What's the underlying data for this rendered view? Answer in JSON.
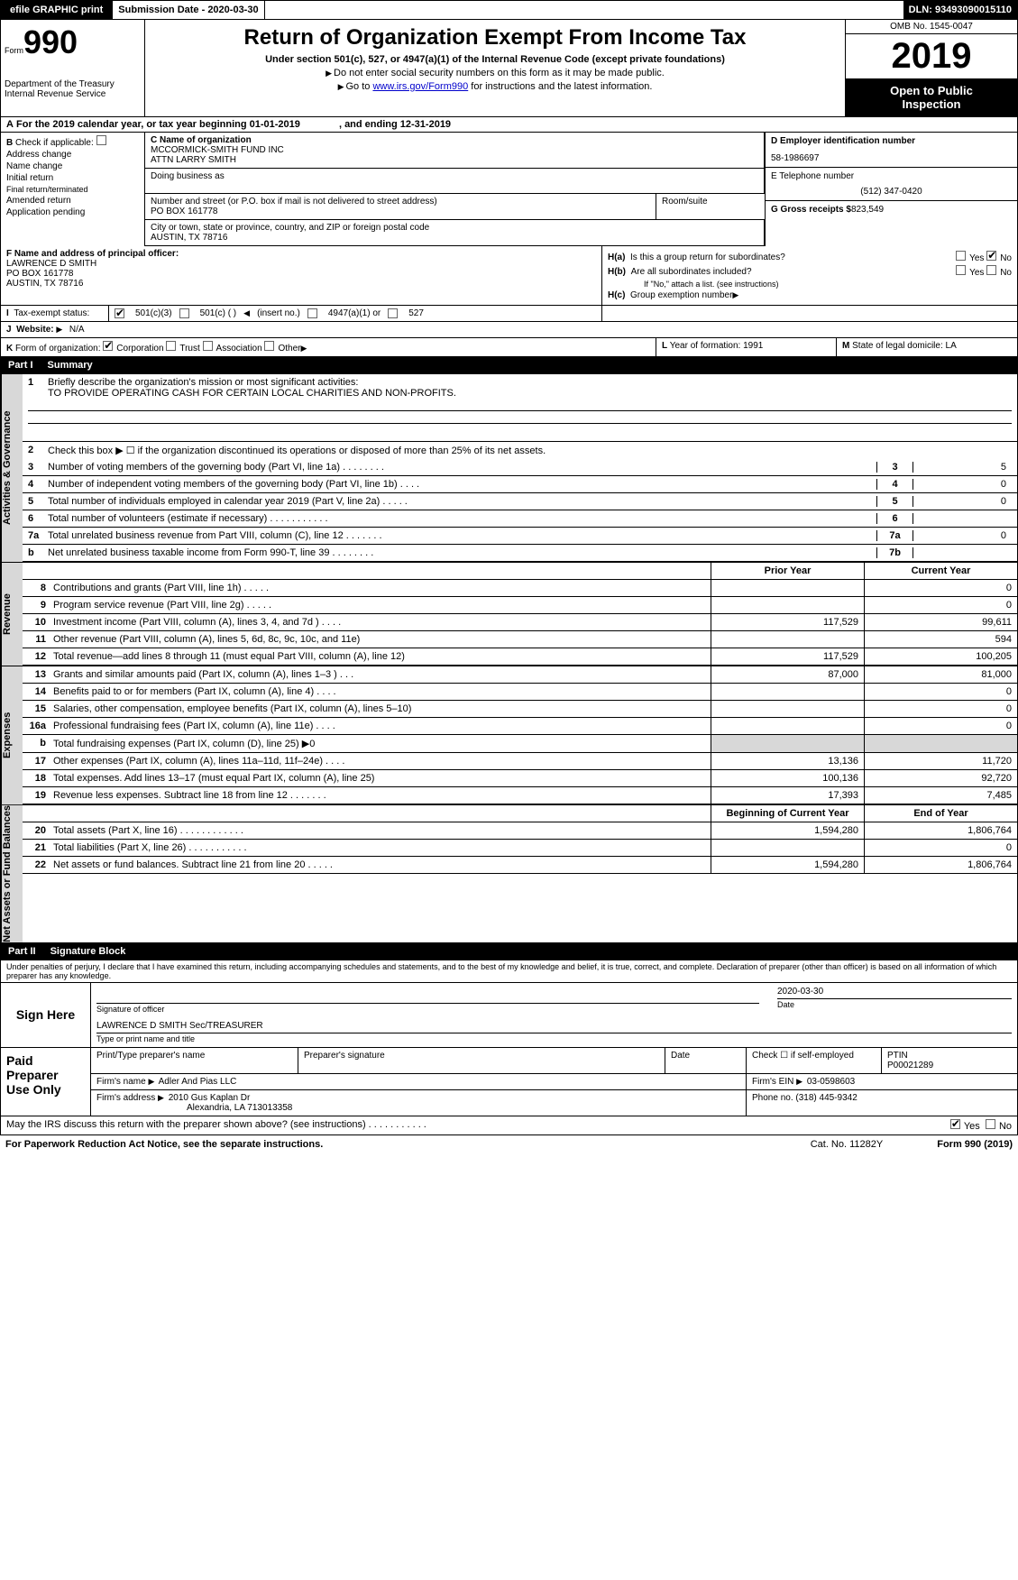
{
  "topbar": {
    "efile_label": "efile GRAPHIC print",
    "submission_label": "Submission Date - 2020-03-30",
    "dln_label": "DLN: 93493090015110"
  },
  "header": {
    "form_label": "Form",
    "form_number": "990",
    "dept": "Department of the Treasury\nInternal Revenue Service",
    "title": "Return of Organization Exempt From Income Tax",
    "subtitle": "Under section 501(c), 527, or 4947(a)(1) of the Internal Revenue Code (except private foundations)",
    "note1": "Do not enter social security numbers on this form as it may be made public.",
    "note2_pre": "Go to ",
    "note2_link": "www.irs.gov/Form990",
    "note2_post": " for instructions and the latest information.",
    "omb": "OMB No. 1545-0047",
    "year": "2019",
    "open": "Open to Public\nInspection"
  },
  "rowA": {
    "label": "A",
    "text": "For the 2019 calendar year, or tax year beginning 01-01-2019",
    "ending": ", and ending 12-31-2019"
  },
  "B": {
    "label": "B",
    "check_label": "Check if applicable:",
    "items": [
      "Address change",
      "Name change",
      "Initial return",
      "Final return/terminated",
      "Amended return",
      "Application pending"
    ]
  },
  "C": {
    "name_label": "C Name of organization",
    "name1": "MCCORMICK-SMITH FUND INC",
    "name2": "ATTN LARRY SMITH",
    "dba_label": "Doing business as",
    "street_label": "Number and street (or P.O. box if mail is not delivered to street address)",
    "street": "PO BOX 161778",
    "room_label": "Room/suite",
    "city_label": "City or town, state or province, country, and ZIP or foreign postal code",
    "city": "AUSTIN, TX  78716"
  },
  "D": {
    "ein_label": "D Employer identification number",
    "ein": "58-1986697",
    "phone_label": "E Telephone number",
    "phone": "(512) 347-0420",
    "gross_label": "G Gross receipts $",
    "gross": "823,549"
  },
  "F": {
    "label": "F  Name and address of principal officer:",
    "name": "LAWRENCE D SMITH",
    "addr1": "PO BOX 161778",
    "addr2": "AUSTIN, TX  78716"
  },
  "H": {
    "ha_label": "H(a)",
    "ha_text": "Is this a group return for subordinates?",
    "hb_label": "H(b)",
    "hb_text": "Are all subordinates included?",
    "hb_note": "If \"No,\" attach a list. (see instructions)",
    "hc_label": "H(c)",
    "hc_text": "Group exemption number",
    "yes": "Yes",
    "no": "No"
  },
  "I": {
    "label": "I",
    "taxex_label": "Tax-exempt status:",
    "opts": [
      "501(c)(3)",
      "501(c) (  )",
      "(insert no.)",
      "4947(a)(1) or",
      "527"
    ]
  },
  "J": {
    "label": "J",
    "web_label": "Website:",
    "arrow": "▶",
    "val": "N/A"
  },
  "K": {
    "label": "K",
    "text": "Form of organization:",
    "opts": [
      "Corporation",
      "Trust",
      "Association",
      "Other"
    ],
    "other_arrow": "▶"
  },
  "L": {
    "label": "L",
    "text": "Year of formation:",
    "val": "1991"
  },
  "M": {
    "label": "M",
    "text": "State of legal domicile:",
    "val": "LA"
  },
  "partI": {
    "num": "Part I",
    "title": "Summary"
  },
  "summary": {
    "vtabs": [
      "Activities & Governance",
      "Revenue",
      "Expenses",
      "Net Assets or Fund Balances"
    ],
    "l1_num": "1",
    "l1": "Briefly describe the organization's mission or most significant activities:",
    "l1_val": "TO PROVIDE OPERATING CASH FOR CERTAIN LOCAL CHARITIES AND NON-PROFITS.",
    "l2_num": "2",
    "l2": "Check this box ▶ ☐ if the organization discontinued its operations or disposed of more than 25% of its net assets.",
    "lines_3_7": [
      {
        "num": "3",
        "txt": "Number of voting members of the governing body (Part VI, line 1a)  .    .    .    .    .    .    .    .",
        "box": "3",
        "val": "5"
      },
      {
        "num": "4",
        "txt": "Number of independent voting members of the governing body (Part VI, line 1b)  .    .    .    .",
        "box": "4",
        "val": "0"
      },
      {
        "num": "5",
        "txt": "Total number of individuals employed in calendar year 2019 (Part V, line 2a)  .    .    .    .    .",
        "box": "5",
        "val": "0"
      },
      {
        "num": "6",
        "txt": "Total number of volunteers (estimate if necessary)  .    .    .    .    .    .    .    .    .    .    .",
        "box": "6",
        "val": ""
      },
      {
        "num": "7a",
        "txt": "Total unrelated business revenue from Part VIII, column (C), line 12  .    .    .    .    .    .    .",
        "box": "7a",
        "val": "0"
      },
      {
        "num": "b",
        "txt": "Net unrelated business taxable income from Form 990-T, line 39  .    .    .    .    .    .    .    .",
        "box": "7b",
        "val": ""
      }
    ],
    "hdr_prior": "Prior Year",
    "hdr_curr": "Current Year",
    "rev": [
      {
        "num": "8",
        "desc": "Contributions and grants (Part VIII, line 1h)  .    .    .    .    .",
        "c1": "",
        "c2": "0"
      },
      {
        "num": "9",
        "desc": "Program service revenue (Part VIII, line 2g)  .    .    .    .    .",
        "c1": "",
        "c2": "0"
      },
      {
        "num": "10",
        "desc": "Investment income (Part VIII, column (A), lines 3, 4, and 7d )  .    .    .    .",
        "c1": "117,529",
        "c2": "99,611"
      },
      {
        "num": "11",
        "desc": "Other revenue (Part VIII, column (A), lines 5, 6d, 8c, 9c, 10c, and 11e)",
        "c1": "",
        "c2": "594"
      },
      {
        "num": "12",
        "desc": "Total revenue—add lines 8 through 11 (must equal Part VIII, column (A), line 12)",
        "c1": "117,529",
        "c2": "100,205"
      }
    ],
    "exp": [
      {
        "num": "13",
        "desc": "Grants and similar amounts paid (Part IX, column (A), lines 1–3 )  .    .    .",
        "c1": "87,000",
        "c2": "81,000"
      },
      {
        "num": "14",
        "desc": "Benefits paid to or for members (Part IX, column (A), line 4)  .    .    .    .",
        "c1": "",
        "c2": "0"
      },
      {
        "num": "15",
        "desc": "Salaries, other compensation, employee benefits (Part IX, column (A), lines 5–10)",
        "c1": "",
        "c2": "0"
      },
      {
        "num": "16a",
        "desc": "Professional fundraising fees (Part IX, column (A), line 11e)  .    .    .    .",
        "c1": "",
        "c2": "0"
      },
      {
        "num": "b",
        "desc": "Total fundraising expenses (Part IX, column (D), line 25) ▶0",
        "c1": "GREY",
        "c2": "GREY"
      },
      {
        "num": "17",
        "desc": "Other expenses (Part IX, column (A), lines 11a–11d, 11f–24e)  .    .    .    .",
        "c1": "13,136",
        "c2": "11,720"
      },
      {
        "num": "18",
        "desc": "Total expenses. Add lines 13–17 (must equal Part IX, column (A), line 25)",
        "c1": "100,136",
        "c2": "92,720"
      },
      {
        "num": "19",
        "desc": "Revenue less expenses. Subtract line 18 from line 12  .    .    .    .    .    .    .",
        "c1": "17,393",
        "c2": "7,485"
      }
    ],
    "hdr_beg": "Beginning of Current Year",
    "hdr_end": "End of Year",
    "net": [
      {
        "num": "20",
        "desc": "Total assets (Part X, line 16)  .    .    .    .    .    .    .    .    .    .    .    .",
        "c1": "1,594,280",
        "c2": "1,806,764"
      },
      {
        "num": "21",
        "desc": "Total liabilities (Part X, line 26)  .    .    .    .    .    .    .    .    .    .    .",
        "c1": "",
        "c2": "0"
      },
      {
        "num": "22",
        "desc": "Net assets or fund balances. Subtract line 21 from line 20  .    .    .    .    .",
        "c1": "1,594,280",
        "c2": "1,806,764"
      }
    ]
  },
  "partII": {
    "num": "Part II",
    "title": "Signature Block"
  },
  "perjury": "Under penalties of perjury, I declare that I have examined this return, including accompanying schedules and statements, and to the best of my knowledge and belief, it is true, correct, and complete. Declaration of preparer (other than officer) is based on all information of which preparer has any knowledge.",
  "sign": {
    "label": "Sign Here",
    "date": "2020-03-30",
    "sig_label": "Signature of officer",
    "date_label": "Date",
    "name": "LAWRENCE D SMITH  Sec/TREASURER",
    "name_label": "Type or print name and title"
  },
  "prep": {
    "label": "Paid Preparer Use Only",
    "print_label": "Print/Type preparer's name",
    "sig_label": "Preparer's signature",
    "date_label": "Date",
    "check_label": "Check ☐ if self-employed",
    "ptin_label": "PTIN",
    "ptin": "P00021289",
    "firm_name_label": "Firm's name",
    "firm_name": "Adler And Pias LLC",
    "firm_ein_label": "Firm's EIN",
    "firm_ein": "03-0598603",
    "firm_addr_label": "Firm's address",
    "firm_addr1": "2010 Gus Kaplan Dr",
    "firm_addr2": "Alexandria, LA  713013358",
    "phone_label": "Phone no.",
    "phone": "(318) 445-9342"
  },
  "footer": {
    "discuss": "May the IRS discuss this return with the preparer shown above? (see instructions)  .    .    .    .    .    .    .    .    .    .    .",
    "yes": "Yes",
    "no": "No",
    "paperwork": "For Paperwork Reduction Act Notice, see the separate instructions.",
    "cat": "Cat. No. 11282Y",
    "form": "Form 990 (2019)"
  }
}
